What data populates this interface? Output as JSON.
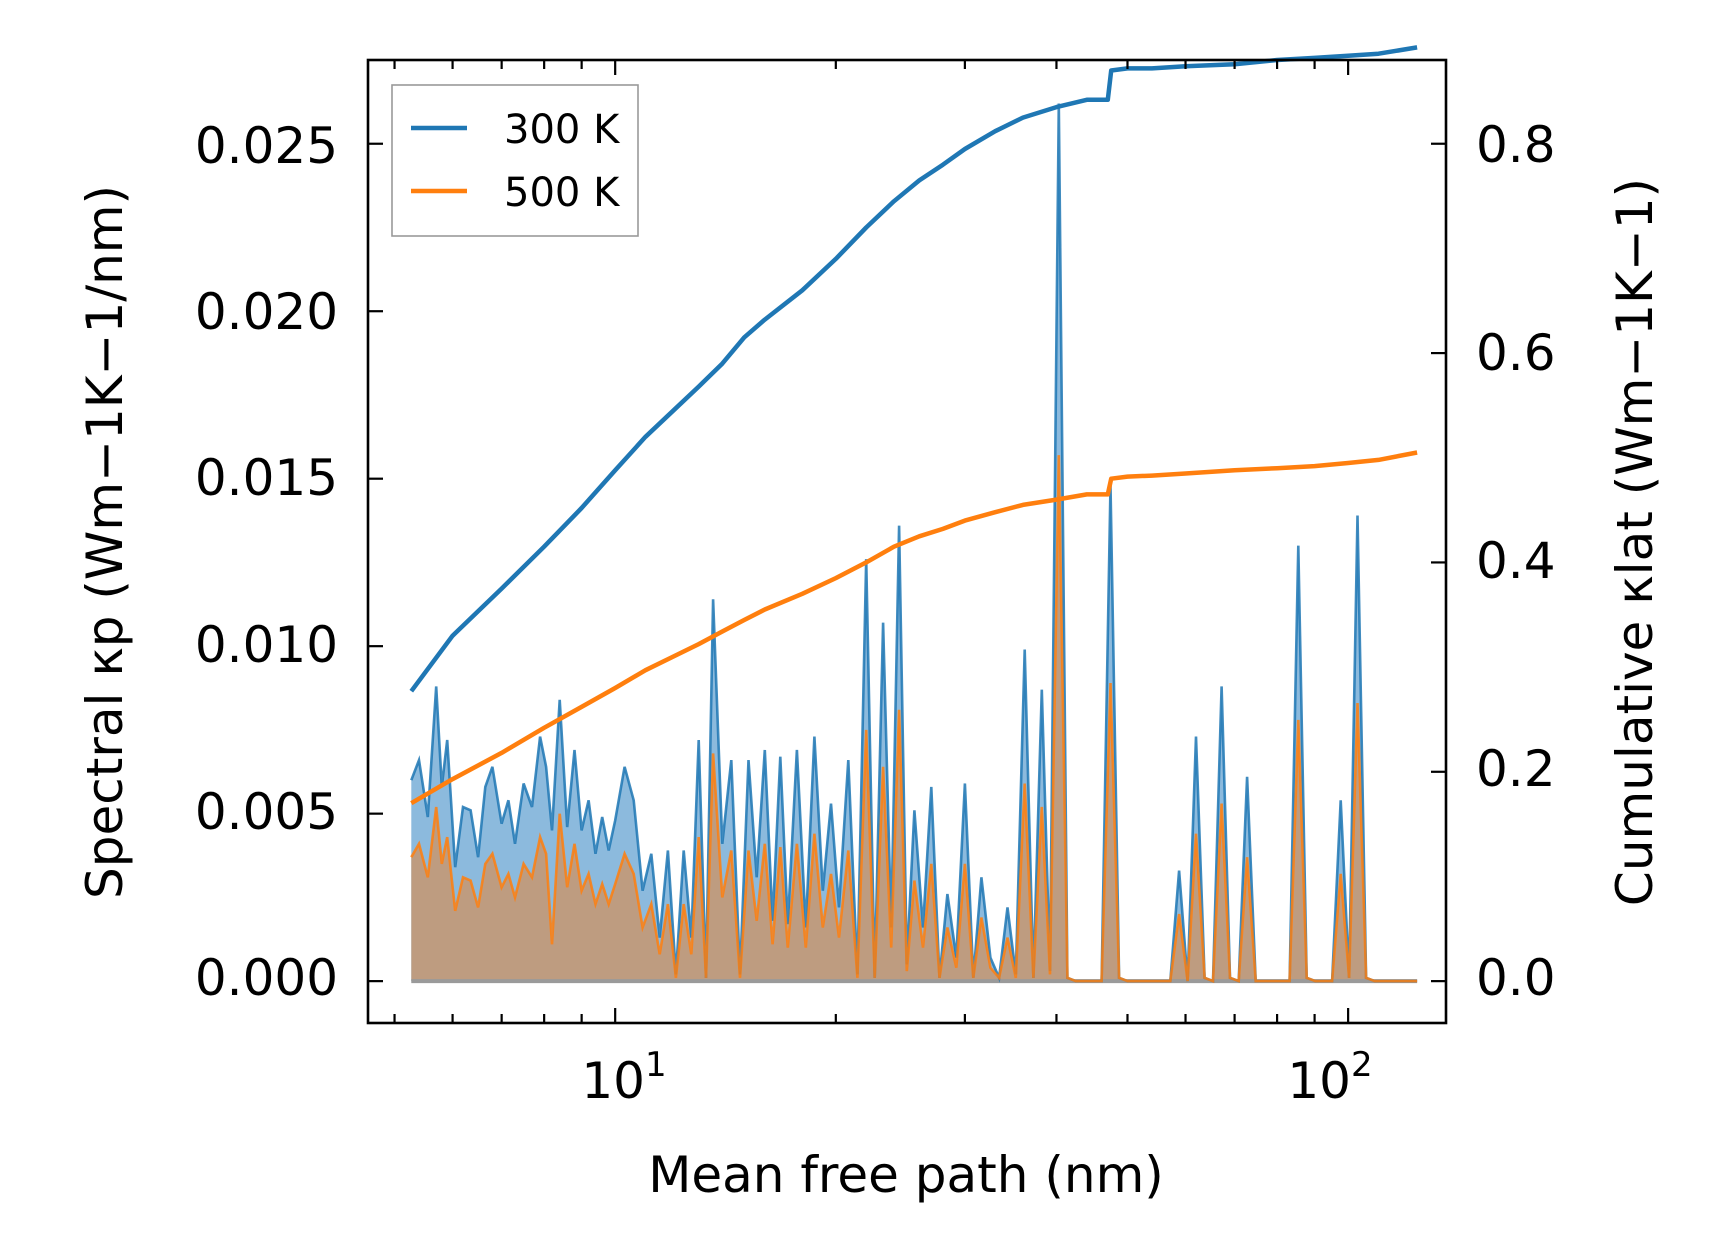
{
  "chart_data": {
    "type": "line",
    "title": "",
    "xlabel": "Mean free path (nm)",
    "ylabel_left": "Spectral κp (Wm−1K−1/nm)",
    "ylabel_right": "Cumulative κlat (Wm−1K−1)",
    "xscale": "log",
    "xlim": [
      4.6,
      136
    ],
    "ylim_left": [
      -0.00125,
      0.0275
    ],
    "ylim_right": [
      -0.04,
      0.88
    ],
    "x_ticks": [
      {
        "base": "10",
        "exp": "1",
        "value": 10
      },
      {
        "base": "10",
        "exp": "2",
        "value": 100
      }
    ],
    "y_ticks_left": [
      "0.000",
      "0.005",
      "0.010",
      "0.015",
      "0.020",
      "0.025"
    ],
    "y_ticks_right": [
      "0.0",
      "0.2",
      "0.4",
      "0.6",
      "0.8"
    ],
    "legend": {
      "position": "upper-left",
      "entries": [
        "300 K",
        "500 K"
      ]
    },
    "series": [
      {
        "name": "300 K",
        "color": "#1f77b4",
        "fill_color": "#7fb2d9",
        "spectral": {
          "x": [
            5.27,
            5.4,
            5.55,
            5.7,
            5.8,
            5.9,
            6.05,
            6.2,
            6.35,
            6.5,
            6.65,
            6.8,
            7.0,
            7.15,
            7.3,
            7.5,
            7.7,
            7.9,
            8.05,
            8.2,
            8.4,
            8.6,
            8.8,
            9.0,
            9.2,
            9.4,
            9.6,
            9.8,
            10.0,
            10.3,
            10.6,
            10.9,
            11.2,
            11.5,
            11.8,
            12.1,
            12.4,
            12.7,
            13.0,
            13.3,
            13.6,
            14.0,
            14.4,
            14.8,
            15.2,
            15.6,
            16.0,
            16.4,
            16.8,
            17.2,
            17.7,
            18.2,
            18.7,
            19.2,
            19.7,
            20.2,
            20.8,
            21.4,
            22.0,
            22.6,
            23.2,
            23.8,
            24.4,
            25.0,
            25.6,
            26.3,
            27.0,
            27.7,
            28.4,
            29.2,
            30.0,
            30.8,
            31.6,
            32.5,
            33.4,
            34.3,
            35.2,
            36.2,
            37.2,
            38.2,
            39.2,
            40.3,
            41.4,
            42.5,
            43.7,
            44.9,
            46.1,
            47.4,
            48.7,
            50.0,
            51.4,
            52.8,
            54.2,
            55.7,
            57.2,
            58.8,
            60.4,
            62.0,
            63.7,
            65.4,
            67.2,
            69.0,
            70.9,
            72.8,
            74.8,
            76.8,
            78.9,
            81.0,
            83.2,
            85.5,
            87.8,
            90.2,
            92.6,
            95.1,
            97.7,
            100.3,
            103.0,
            105.8,
            108.7,
            111.6,
            114.6,
            117.7,
            120.9,
            124.2
          ],
          "y": [
            0.006,
            0.0066,
            0.0049,
            0.0088,
            0.0058,
            0.0072,
            0.0034,
            0.0052,
            0.0051,
            0.0037,
            0.0058,
            0.0064,
            0.0047,
            0.0054,
            0.0041,
            0.0059,
            0.0052,
            0.0073,
            0.0064,
            0.0045,
            0.0084,
            0.0046,
            0.0069,
            0.0045,
            0.0054,
            0.0038,
            0.0049,
            0.0039,
            0.0048,
            0.0064,
            0.0054,
            0.0027,
            0.0038,
            0.0013,
            0.0039,
            0.0002,
            0.0039,
            0.0013,
            0.0072,
            0.0001,
            0.0114,
            0.0041,
            0.0066,
            0.0002,
            0.0066,
            0.0031,
            0.0069,
            0.0018,
            0.0067,
            0.0017,
            0.0069,
            0.0016,
            0.0073,
            0.0027,
            0.0053,
            0.0022,
            0.0066,
            0.0002,
            0.0126,
            0.0001,
            0.0107,
            0.0016,
            0.0136,
            0.0005,
            0.0051,
            0.0016,
            0.0058,
            0.0001,
            0.0026,
            0.0007,
            0.0059,
            0.0001,
            0.0031,
            0.0007,
            0.0001,
            0.0022,
            0.0002,
            0.0099,
            0.0001,
            0.0087,
            0.0003,
            0.0262,
            0.0001,
            0.0,
            0.0,
            0.0,
            0.0,
            0.0148,
            0.0001,
            0.0,
            0.0,
            0.0,
            0.0,
            0.0,
            0.0,
            0.0033,
            0.0,
            0.0073,
            0.0001,
            0.0,
            0.0088,
            0.0001,
            0.0,
            0.0061,
            0.0,
            0.0,
            0.0,
            0.0,
            0.0,
            0.013,
            0.0001,
            0.0,
            0.0,
            0.0,
            0.0054,
            0.0001,
            0.0139,
            0.0001,
            0.0,
            0.0,
            0.0,
            0.0,
            0.0,
            0.0
          ]
        },
        "cumulative": {
          "x": [
            5.27,
            6.0,
            7.0,
            8.0,
            9.0,
            10.0,
            11.0,
            12.0,
            13.0,
            14.0,
            15.0,
            16.0,
            18.0,
            20.0,
            22.0,
            24.0,
            26.0,
            28.0,
            30.0,
            33.0,
            36.0,
            40.0,
            44.0,
            47.0,
            47.5,
            50.0,
            54.0,
            60.0,
            70.0,
            80.0,
            90.0,
            100.0,
            110.0,
            124.2
          ],
          "y": [
            0.277,
            0.33,
            0.375,
            0.415,
            0.452,
            0.488,
            0.52,
            0.545,
            0.568,
            0.59,
            0.615,
            0.632,
            0.66,
            0.69,
            0.72,
            0.745,
            0.765,
            0.78,
            0.795,
            0.812,
            0.825,
            0.835,
            0.842,
            0.842,
            0.87,
            0.872,
            0.872,
            0.874,
            0.876,
            0.88,
            0.882,
            0.884,
            0.886,
            0.892
          ]
        }
      },
      {
        "name": "500 K",
        "color": "#ff7f0e",
        "fill_color": "#c19a7a",
        "spectral": {
          "x": [
            5.27,
            5.4,
            5.55,
            5.7,
            5.8,
            5.9,
            6.05,
            6.2,
            6.35,
            6.5,
            6.65,
            6.8,
            7.0,
            7.15,
            7.3,
            7.5,
            7.7,
            7.9,
            8.05,
            8.2,
            8.4,
            8.6,
            8.8,
            9.0,
            9.2,
            9.4,
            9.6,
            9.8,
            10.0,
            10.3,
            10.6,
            10.9,
            11.2,
            11.5,
            11.8,
            12.1,
            12.4,
            12.7,
            13.0,
            13.3,
            13.6,
            14.0,
            14.4,
            14.8,
            15.2,
            15.6,
            16.0,
            16.4,
            16.8,
            17.2,
            17.7,
            18.2,
            18.7,
            19.2,
            19.7,
            20.2,
            20.8,
            21.4,
            22.0,
            22.6,
            23.2,
            23.8,
            24.4,
            25.0,
            25.6,
            26.3,
            27.0,
            27.7,
            28.4,
            29.2,
            30.0,
            30.8,
            31.6,
            32.5,
            33.4,
            34.3,
            35.2,
            36.2,
            37.2,
            38.2,
            39.2,
            40.3,
            41.4,
            42.5,
            43.7,
            44.9,
            46.1,
            47.4,
            48.7,
            50.0,
            51.4,
            52.8,
            54.2,
            55.7,
            57.2,
            58.8,
            60.4,
            62.0,
            63.7,
            65.4,
            67.2,
            69.0,
            70.9,
            72.8,
            74.8,
            76.8,
            78.9,
            81.0,
            83.2,
            85.5,
            87.8,
            90.2,
            92.6,
            95.1,
            97.7,
            100.3,
            103.0,
            105.8,
            108.7,
            111.6,
            114.6,
            117.7,
            120.9,
            124.2
          ],
          "y": [
            0.0037,
            0.0041,
            0.0031,
            0.0052,
            0.0035,
            0.0043,
            0.0021,
            0.0031,
            0.003,
            0.0022,
            0.0035,
            0.0038,
            0.0028,
            0.0032,
            0.0025,
            0.0035,
            0.0031,
            0.0043,
            0.0038,
            0.0011,
            0.005,
            0.0028,
            0.0041,
            0.0027,
            0.0032,
            0.0023,
            0.0029,
            0.0023,
            0.0029,
            0.0038,
            0.0032,
            0.0016,
            0.0023,
            0.0008,
            0.0023,
            0.0001,
            0.0023,
            0.0008,
            0.0043,
            0.0001,
            0.0068,
            0.0025,
            0.0039,
            0.0001,
            0.0039,
            0.0018,
            0.0041,
            0.0011,
            0.004,
            0.001,
            0.0041,
            0.001,
            0.0044,
            0.0016,
            0.0032,
            0.0013,
            0.0039,
            0.0001,
            0.0075,
            0.0001,
            0.0064,
            0.001,
            0.0081,
            0.0003,
            0.003,
            0.001,
            0.0035,
            0.0001,
            0.0016,
            0.0004,
            0.0035,
            0.0001,
            0.0019,
            0.0004,
            0.0001,
            0.0013,
            0.0001,
            0.0059,
            0.0001,
            0.0052,
            0.0002,
            0.0157,
            0.0001,
            0.0,
            0.0,
            0.0,
            0.0,
            0.0089,
            0.0001,
            0.0,
            0.0,
            0.0,
            0.0,
            0.0,
            0.0,
            0.002,
            0.0,
            0.0044,
            0.0001,
            0.0,
            0.0053,
            0.0001,
            0.0,
            0.0037,
            0.0,
            0.0,
            0.0,
            0.0,
            0.0,
            0.0078,
            0.0001,
            0.0,
            0.0,
            0.0,
            0.0032,
            0.0001,
            0.0083,
            0.0001,
            0.0,
            0.0,
            0.0,
            0.0,
            0.0,
            0.0
          ]
        },
        "cumulative": {
          "x": [
            5.27,
            6.0,
            7.0,
            8.0,
            9.0,
            10.0,
            11.0,
            12.0,
            13.0,
            14.0,
            15.0,
            16.0,
            18.0,
            20.0,
            22.0,
            24.0,
            26.0,
            28.0,
            30.0,
            33.0,
            36.0,
            40.0,
            44.0,
            47.0,
            47.5,
            50.0,
            54.0,
            60.0,
            70.0,
            80.0,
            90.0,
            100.0,
            110.0,
            124.2
          ],
          "y": [
            0.17,
            0.193,
            0.218,
            0.242,
            0.262,
            0.28,
            0.297,
            0.31,
            0.322,
            0.334,
            0.345,
            0.355,
            0.37,
            0.385,
            0.4,
            0.415,
            0.425,
            0.432,
            0.44,
            0.448,
            0.455,
            0.46,
            0.465,
            0.465,
            0.48,
            0.482,
            0.483,
            0.485,
            0.488,
            0.49,
            0.492,
            0.495,
            0.498,
            0.505
          ]
        }
      }
    ]
  }
}
